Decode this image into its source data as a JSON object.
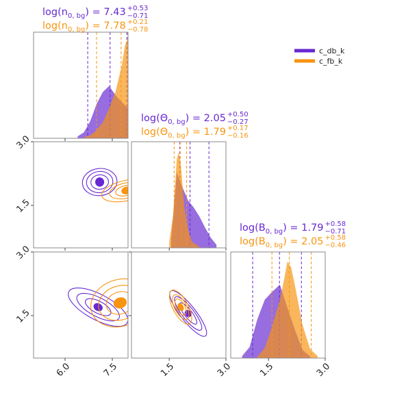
{
  "colors": {
    "c_db_k": "#6628d2",
    "c_fb_k": "#f8940f"
  },
  "legend": {
    "entries": [
      "c_db_k",
      "c_fb_k"
    ],
    "placement": "top-right"
  },
  "titles": [
    {
      "param": "n",
      "series": [
        {
          "name": "c_db_k",
          "base": "log(n",
          "sub": "0, bg",
          "close": ") = 7.43",
          "plus": "+0.53",
          "minus": "−0.71"
        },
        {
          "name": "c_fb_k",
          "base": "log(n",
          "sub": "0, bg",
          "close": ") = 7.78",
          "plus": "+0.21",
          "minus": "−0.78"
        }
      ]
    },
    {
      "param": "theta",
      "series": [
        {
          "name": "c_db_k",
          "base": "log(Θ",
          "sub": "0, bg",
          "close": ") = 2.05",
          "plus": "+0.50",
          "minus": "−0.27"
        },
        {
          "name": "c_fb_k",
          "base": "log(Θ",
          "sub": "0, bg",
          "close": ") = 1.79",
          "plus": "+0.17",
          "minus": "−0.16"
        }
      ]
    },
    {
      "param": "B",
      "series": [
        {
          "name": "c_db_k",
          "base": "log(B",
          "sub": "0, bg",
          "close": ") = 1.79",
          "plus": "+0.58",
          "minus": "−0.71"
        },
        {
          "name": "c_fb_k",
          "base": "log(B",
          "sub": "0, bg",
          "close": ") = 2.05",
          "plus": "+0.58",
          "minus": "−0.46"
        }
      ]
    }
  ],
  "chart_data": {
    "type": "corner",
    "parameters": [
      "log(n_0,bg)",
      "log(Θ_0,bg)",
      "log(B_0,bg)"
    ],
    "ranges": [
      [
        5.0,
        8.0
      ],
      [
        0.5,
        3.0
      ],
      [
        0.5,
        3.0
      ]
    ],
    "ticks": [
      {
        "values": [
          6.0,
          7.5
        ],
        "labels": [
          "6.0",
          "7.5"
        ]
      },
      {
        "values": [
          1.5,
          3.0
        ],
        "labels": [
          "1.5",
          "3.0"
        ]
      },
      {
        "values": [
          1.5,
          3.0
        ],
        "labels": [
          "1.5",
          "3.0"
        ]
      }
    ],
    "quantiles": {
      "c_db_k": [
        [
          6.72,
          7.43,
          7.96
        ],
        [
          1.78,
          2.05,
          2.55
        ],
        [
          1.08,
          1.79,
          2.37
        ]
      ],
      "c_fb_k": [
        [
          7.0,
          7.78,
          7.99
        ],
        [
          1.63,
          1.79,
          1.96
        ],
        [
          1.59,
          2.05,
          2.63
        ]
      ]
    },
    "marginals": {
      "c_db_k": [
        {
          "x": [
            6.4,
            6.6,
            6.8,
            7.0,
            7.2,
            7.4,
            7.6,
            7.8,
            8.0
          ],
          "density": [
            0.02,
            0.06,
            0.17,
            0.34,
            0.46,
            0.52,
            0.43,
            0.36,
            0.3
          ]
        },
        {
          "x": [
            1.55,
            1.7,
            1.85,
            2.0,
            2.15,
            2.3,
            2.45,
            2.6,
            2.75
          ],
          "density": [
            0.08,
            0.75,
            0.6,
            0.47,
            0.4,
            0.31,
            0.2,
            0.1,
            0.03
          ]
        },
        {
          "x": [
            0.8,
            1.0,
            1.2,
            1.4,
            1.6,
            1.8,
            2.0,
            2.2,
            2.4,
            2.6
          ],
          "density": [
            0.02,
            0.11,
            0.38,
            0.58,
            0.66,
            0.73,
            0.5,
            0.28,
            0.08,
            0.02
          ]
        }
      ],
      "c_fb_k": [
        {
          "x": [
            6.6,
            6.8,
            7.0,
            7.2,
            7.4,
            7.6,
            7.8,
            7.9,
            8.0
          ],
          "density": [
            0.01,
            0.03,
            0.08,
            0.16,
            0.3,
            0.46,
            0.72,
            0.92,
            1.0
          ]
        },
        {
          "x": [
            1.5,
            1.6,
            1.7,
            1.75,
            1.8,
            1.9,
            2.0,
            2.1,
            2.3
          ],
          "density": [
            0.06,
            0.32,
            0.88,
            0.95,
            0.85,
            0.4,
            0.18,
            0.06,
            0.01
          ]
        },
        {
          "x": [
            1.2,
            1.4,
            1.6,
            1.8,
            1.9,
            2.0,
            2.1,
            2.2,
            2.4,
            2.6,
            2.8
          ],
          "density": [
            0.01,
            0.1,
            0.32,
            0.58,
            0.76,
            0.96,
            0.9,
            0.72,
            0.33,
            0.09,
            0.02
          ]
        }
      ]
    },
    "contours_2d": {
      "c_db_k": [
        {
          "panel": "theta-vs-n",
          "cx": 7.1,
          "cy": 2.05,
          "rx": [
            0.55,
            0.42,
            0.28,
            0.13
          ],
          "ry": [
            0.32,
            0.25,
            0.17,
            0.1
          ],
          "angle": -6
        },
        {
          "panel": "B-vs-n",
          "cx": 7.05,
          "cy": 1.7,
          "rx": [
            1.05,
            0.75,
            0.45,
            0.14
          ],
          "ry": [
            0.3,
            0.22,
            0.14,
            0.08
          ],
          "angle": 28
        },
        {
          "panel": "B-vs-theta",
          "cx": 2.0,
          "cy": 1.55,
          "rx": [
            0.75,
            0.55,
            0.35,
            0.09
          ],
          "ry": [
            0.18,
            0.14,
            0.09,
            0.07
          ],
          "angle": 52
        }
      ],
      "c_fb_k": [
        {
          "panel": "theta-vs-n",
          "cx": 7.95,
          "cy": 1.85,
          "rx": [
            0.8,
            0.55,
            0.35,
            0.15
          ],
          "ry": [
            0.24,
            0.18,
            0.12,
            0.08
          ],
          "angle": -12
        },
        {
          "panel": "B-vs-n",
          "cx": 7.75,
          "cy": 1.8,
          "rx": [
            0.95,
            0.7,
            0.45,
            0.2
          ],
          "ry": [
            0.55,
            0.4,
            0.26,
            0.12
          ],
          "angle": -18
        },
        {
          "panel": "B-vs-theta",
          "cx": 1.8,
          "cy": 1.7,
          "rx": [
            0.5,
            0.36,
            0.24,
            0.1
          ],
          "ry": [
            0.18,
            0.14,
            0.1,
            0.06
          ],
          "angle": 62
        }
      ]
    }
  }
}
